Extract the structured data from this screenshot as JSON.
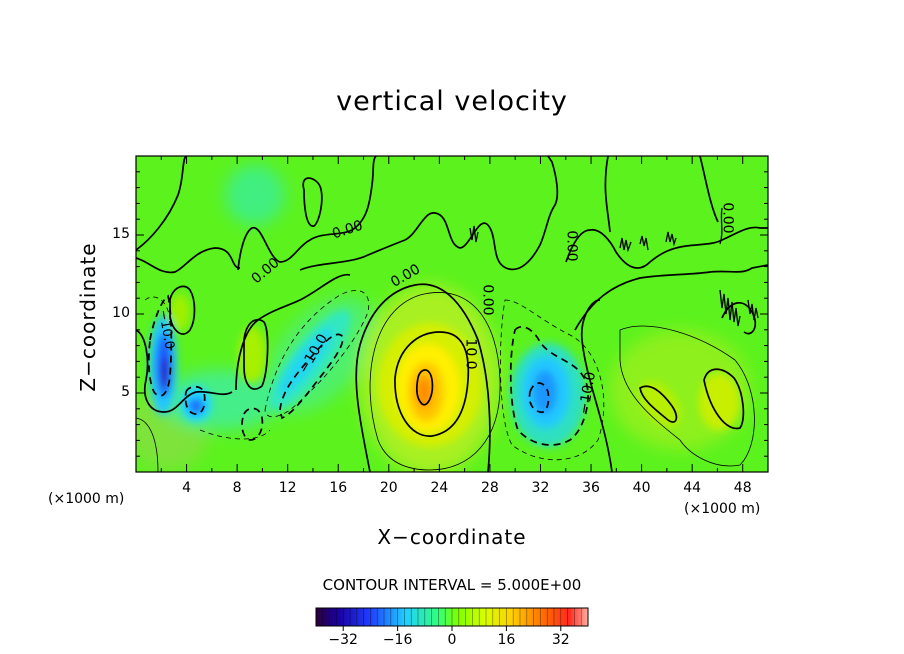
{
  "chart_data": {
    "type": "heatmap",
    "title": "vertical velocity",
    "xlabel": "X−coordinate",
    "ylabel": "Z−coordinate",
    "x_unit_left": "(×1000 m)",
    "x_unit_right": "(×1000 m)",
    "xlim": [
      0,
      50
    ],
    "ylim": [
      0,
      20
    ],
    "x_ticks": [
      "4",
      "8",
      "12",
      "16",
      "20",
      "24",
      "28",
      "32",
      "36",
      "40",
      "44",
      "48"
    ],
    "y_ticks": [
      "5",
      "10",
      "15"
    ],
    "contour_interval_text": "CONTOUR INTERVAL =  5.000E+00",
    "contour_labels": [
      "0.00",
      "10.0",
      "−10.0"
    ],
    "colorbar": {
      "ticks": [
        "−32",
        "−16",
        "0",
        "16",
        "32"
      ],
      "range": [
        -40,
        40
      ]
    },
    "features": [
      {
        "kind": "updraft",
        "x": 23,
        "z": 5,
        "peak": 26
      },
      {
        "kind": "downdraft",
        "x": 32.5,
        "z": 5,
        "peak": -22
      },
      {
        "kind": "downdraft",
        "x": 2.2,
        "z": 6.5,
        "peak": -34
      },
      {
        "kind": "downdraft",
        "x": 4.7,
        "z": 4.2,
        "peak": -20
      },
      {
        "kind": "downdraft",
        "x": 13.5,
        "z": 7,
        "peak": -13
      },
      {
        "kind": "updraft",
        "x": 45.5,
        "z": 5,
        "peak": 12
      },
      {
        "kind": "updraft",
        "x": 9,
        "z": 7,
        "peak": 8
      }
    ]
  }
}
